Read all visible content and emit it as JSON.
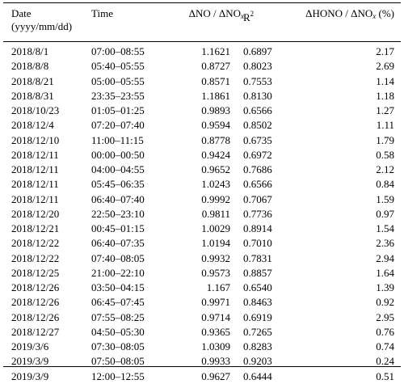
{
  "headers": {
    "date_line1": "Date",
    "date_line2": "(yyyy/mm/dd)",
    "time": "Time",
    "dno": "ΔNO / ΔNO",
    "dno_sub": "x",
    "r2": "R",
    "r2_sup": "2",
    "dhono": "ΔHONO / ΔNO",
    "dhono_sub": "x",
    "dhono_unit": " (%)"
  },
  "rows": [
    {
      "date": "2018/8/1",
      "time": "07:00–08:55",
      "dno": "1.1621",
      "r2": "0.6897",
      "dhono": "2.17"
    },
    {
      "date": "2018/8/8",
      "time": "05:40–05:55",
      "dno": "0.8727",
      "r2": "0.8023",
      "dhono": "2.69"
    },
    {
      "date": "2018/8/21",
      "time": "05:00–05:55",
      "dno": "0.8571",
      "r2": "0.7553",
      "dhono": "1.14"
    },
    {
      "date": "2018/8/31",
      "time": "23:35–23:55",
      "dno": "1.1861",
      "r2": "0.8130",
      "dhono": "1.18"
    },
    {
      "date": "2018/10/23",
      "time": "01:05–01:25",
      "dno": "0.9893",
      "r2": "0.6566",
      "dhono": "1.27"
    },
    {
      "date": "2018/12/4",
      "time": "07:20–07:40",
      "dno": "0.9594",
      "r2": "0.8502",
      "dhono": "1.11"
    },
    {
      "date": "2018/12/10",
      "time": "11:00–11:15",
      "dno": "0.8778",
      "r2": "0.6735",
      "dhono": "1.79"
    },
    {
      "date": "2018/12/11",
      "time": "00:00–00:50",
      "dno": "0.9424",
      "r2": "0.6972",
      "dhono": "0.58"
    },
    {
      "date": "2018/12/11",
      "time": "04:00–04:55",
      "dno": "0.9652",
      "r2": "0.7686",
      "dhono": "2.12"
    },
    {
      "date": "2018/12/11",
      "time": "05:45–06:35",
      "dno": "1.0243",
      "r2": "0.6566",
      "dhono": "0.84"
    },
    {
      "date": "2018/12/11",
      "time": "06:40–07:40",
      "dno": "0.9992",
      "r2": "0.7067",
      "dhono": "1.59"
    },
    {
      "date": "2018/12/20",
      "time": "22:50–23:10",
      "dno": "0.9811",
      "r2": "0.7736",
      "dhono": "0.97"
    },
    {
      "date": "2018/12/21",
      "time": "00:45–01:15",
      "dno": "1.0029",
      "r2": "0.8914",
      "dhono": "1.54"
    },
    {
      "date": "2018/12/22",
      "time": "06:40–07:35",
      "dno": "1.0194",
      "r2": "0.7010",
      "dhono": "2.36"
    },
    {
      "date": "2018/12/22",
      "time": "07:40–08:05",
      "dno": "0.9932",
      "r2": "0.7831",
      "dhono": "2.94"
    },
    {
      "date": "2018/12/25",
      "time": "21:00–22:10",
      "dno": "0.9573",
      "r2": "0.8857",
      "dhono": "1.64"
    },
    {
      "date": "2018/12/26",
      "time": "03:50–04:15",
      "dno": "1.167",
      "r2": "0.6540",
      "dhono": "1.39"
    },
    {
      "date": "2018/12/26",
      "time": "06:45–07:45",
      "dno": "0.9971",
      "r2": "0.8463",
      "dhono": "0.92"
    },
    {
      "date": "2018/12/26",
      "time": "07:55–08:25",
      "dno": "0.9714",
      "r2": "0.6919",
      "dhono": "2.95"
    },
    {
      "date": "2018/12/27",
      "time": "04:50–05:30",
      "dno": "0.9365",
      "r2": "0.7265",
      "dhono": "0.76"
    },
    {
      "date": "2019/3/6",
      "time": "07:30–08:05",
      "dno": "1.0309",
      "r2": "0.8283",
      "dhono": "0.74"
    },
    {
      "date": "2019/3/9",
      "time": "07:50–08:05",
      "dno": "0.9933",
      "r2": "0.9203",
      "dhono": "0.24"
    },
    {
      "date": "2019/3/9",
      "time": "12:00–12:55",
      "dno": "0.9627",
      "r2": "0.6444",
      "dhono": "0.51"
    }
  ]
}
